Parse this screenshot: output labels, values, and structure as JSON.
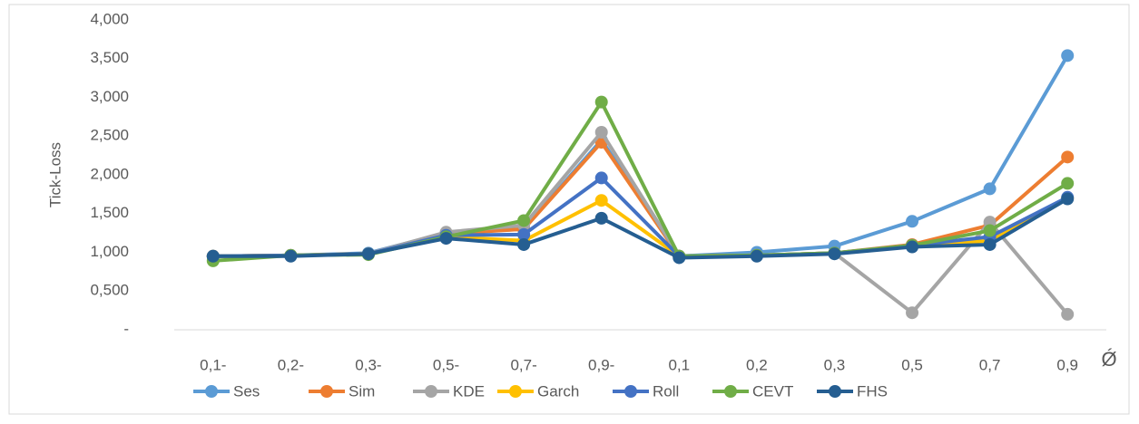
{
  "chart_data": {
    "type": "line",
    "y_label": "Tick-Loss",
    "x_label": "Ǿ",
    "categories": [
      "0,1-",
      "0,2-",
      "0,3-",
      "0,5-",
      "0,7-",
      "0,9-",
      "0,1",
      "0,2",
      "0,3",
      "0,5",
      "0,7",
      "0,9"
    ],
    "ylim": [
      0,
      4
    ],
    "yticks": [
      {
        "value": 0,
        "label": "-"
      },
      {
        "value": 0.5,
        "label": "0,500"
      },
      {
        "value": 1,
        "label": "1,000"
      },
      {
        "value": 1.5,
        "label": "1,500"
      },
      {
        "value": 2,
        "label": "2,000"
      },
      {
        "value": 2.5,
        "label": "2,500"
      },
      {
        "value": 3,
        "label": "3,000"
      },
      {
        "value": 3.5,
        "label": "3,500"
      },
      {
        "value": 4,
        "label": "4,000"
      }
    ],
    "grid": false,
    "legend": "bottom",
    "series": [
      {
        "name": "Ses",
        "color": "#5B9BD5",
        "values": [
          0.95,
          0.96,
          0.99,
          1.25,
          1.3,
          2.45,
          0.95,
          1.0,
          1.08,
          1.4,
          1.82,
          3.54
        ]
      },
      {
        "name": "Sim",
        "color": "#ED7D31",
        "values": [
          0.95,
          0.96,
          0.98,
          1.24,
          1.3,
          2.42,
          0.95,
          0.96,
          0.99,
          1.1,
          1.35,
          2.23
        ]
      },
      {
        "name": "KDE",
        "color": "#A5A5A5",
        "values": [
          0.95,
          0.96,
          0.98,
          1.26,
          1.35,
          2.55,
          0.95,
          0.96,
          0.99,
          0.22,
          1.39,
          0.2
        ]
      },
      {
        "name": "Garch",
        "color": "#FFC000",
        "values": [
          0.95,
          0.96,
          0.98,
          1.2,
          1.15,
          1.67,
          0.95,
          0.96,
          0.99,
          1.08,
          1.15,
          1.7
        ]
      },
      {
        "name": "Roll",
        "color": "#4472C4",
        "values": [
          0.95,
          0.96,
          0.98,
          1.22,
          1.23,
          1.96,
          0.95,
          0.96,
          0.99,
          1.09,
          1.2,
          1.71
        ]
      },
      {
        "name": "CEVT",
        "color": "#70AD47",
        "values": [
          0.89,
          0.96,
          0.97,
          1.2,
          1.41,
          2.94,
          0.95,
          0.96,
          0.99,
          1.09,
          1.28,
          1.89
        ]
      },
      {
        "name": "FHS",
        "color": "#255E91",
        "values": [
          0.95,
          0.95,
          0.98,
          1.18,
          1.1,
          1.44,
          0.93,
          0.95,
          0.98,
          1.07,
          1.1,
          1.69
        ]
      }
    ]
  }
}
